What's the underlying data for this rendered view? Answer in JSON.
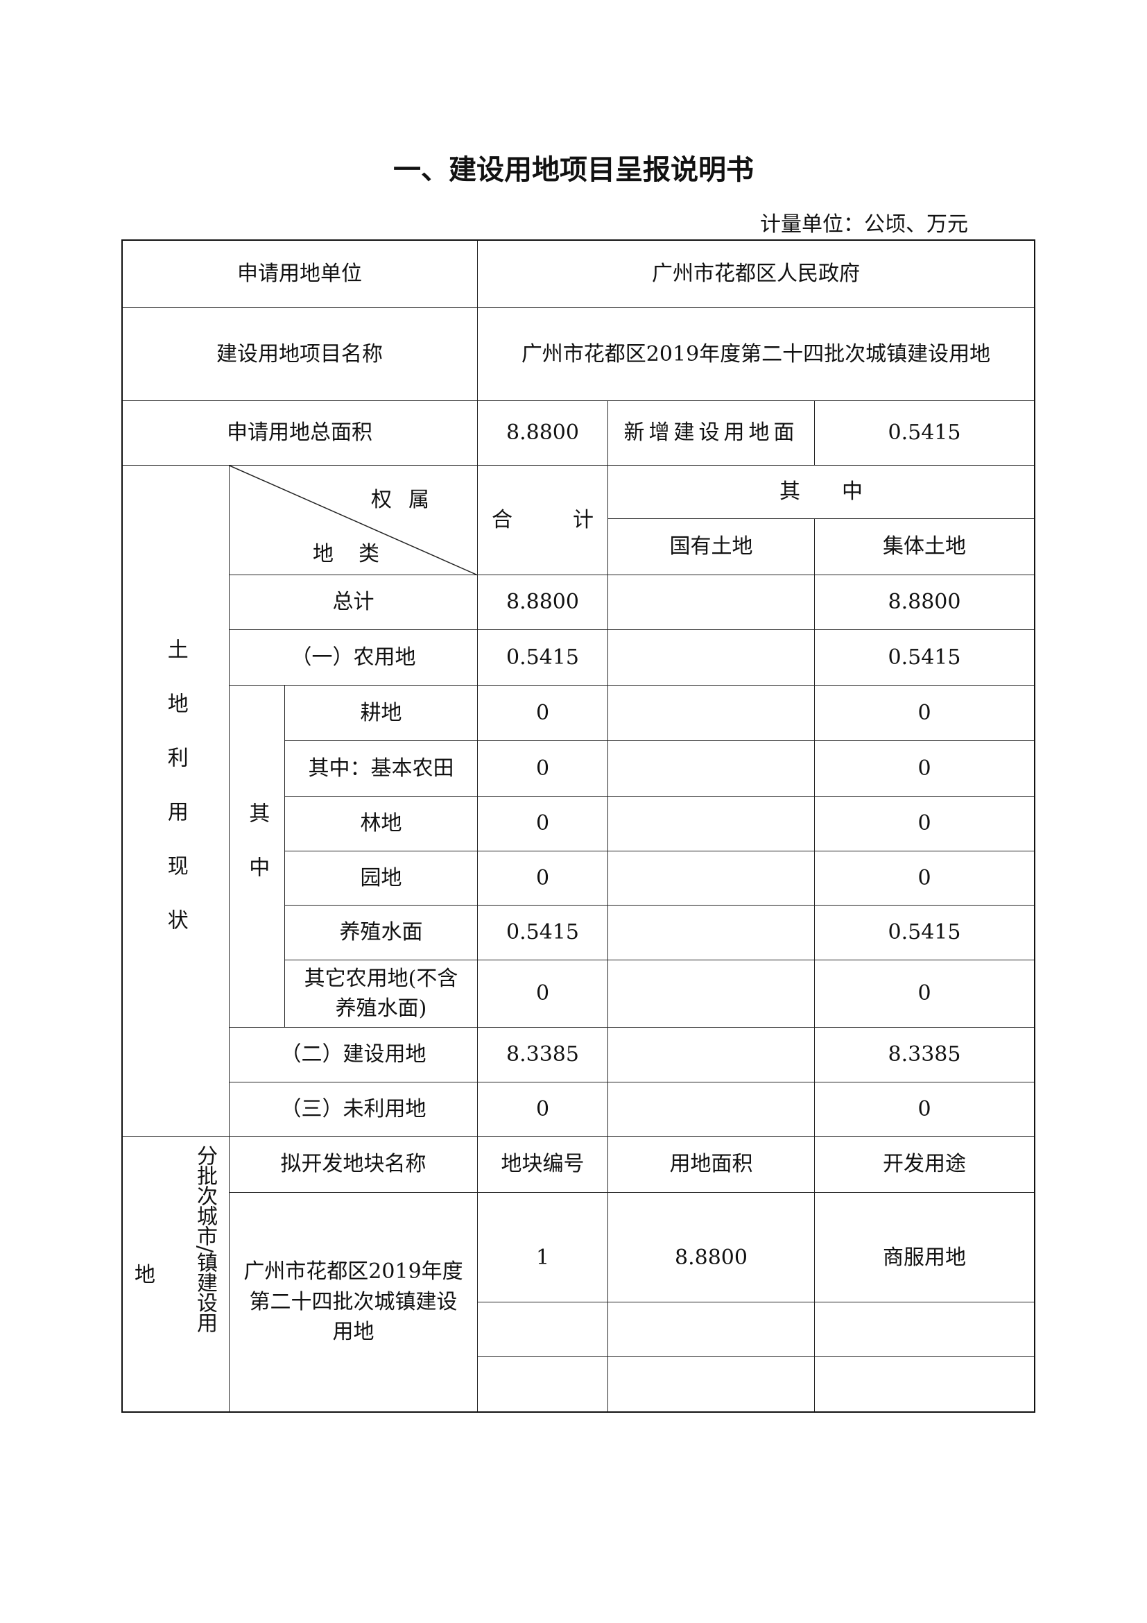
{
  "title": "一、建设用地项目呈报说明书",
  "unit": "计量单位：公顷、万元",
  "applicant": {
    "label": "申请用地单位",
    "value": "广州市花都区人民政府"
  },
  "project": {
    "label": "建设用地项目名称",
    "value": "广州市花都区2019年度第二十四批次城镇建设用地"
  },
  "area": {
    "label": "申请用地总面积",
    "value": "8.8800",
    "new_label": "新增建设用地面",
    "new_value": "0.5415"
  },
  "landuse": {
    "section_label": "土地利用现状",
    "diag_top": "权属",
    "diag_bottom": "地类",
    "total_head_a": "合",
    "total_head_b": "计",
    "of_which": "其　　中",
    "state_land": "国有土地",
    "collective_land": "集体土地",
    "sub_label": "其中",
    "rows": [
      {
        "label": "总计",
        "total": "8.8800",
        "state": "",
        "collective": "8.8800"
      },
      {
        "label": "（一）农用地",
        "total": "0.5415",
        "state": "",
        "collective": "0.5415"
      },
      {
        "label": "耕地",
        "total": "0",
        "state": "",
        "collective": "0"
      },
      {
        "label": "其中：基本农田",
        "total": "0",
        "state": "",
        "collective": "0"
      },
      {
        "label": "林地",
        "total": "0",
        "state": "",
        "collective": "0"
      },
      {
        "label": "园地",
        "total": "0",
        "state": "",
        "collective": "0"
      },
      {
        "label": "养殖水面",
        "total": "0.5415",
        "state": "",
        "collective": "0.5415"
      },
      {
        "label": "其它农用地(不含养殖水面)",
        "total": "0",
        "state": "",
        "collective": "0"
      },
      {
        "label": "（二）建设用地",
        "total": "8.3385",
        "state": "",
        "collective": "8.3385"
      },
      {
        "label": "（三）未利用地",
        "total": "0",
        "state": "",
        "collective": "0"
      }
    ]
  },
  "batch": {
    "section_label_a": "地",
    "section_label_b": "分批次城市/镇建设用",
    "headers": [
      "拟开发地块名称",
      "地块编号",
      "用地面积",
      "开发用途"
    ],
    "plot_name": "广州市花都区2019年度第二十四批次城镇建设用地",
    "plots": [
      {
        "no": "1",
        "area": "8.8800",
        "use": "商服用地"
      },
      {
        "no": "",
        "area": "",
        "use": ""
      },
      {
        "no": "",
        "area": "",
        "use": ""
      }
    ]
  }
}
